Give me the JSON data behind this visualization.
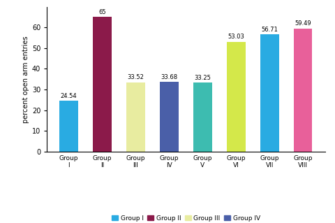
{
  "categories": [
    "Group\nI",
    "Group\nII",
    "Group\nIII",
    "Group\nIV",
    "Group\nV",
    "Group\nVI",
    "Group\nVII",
    "Group\nVIII"
  ],
  "values": [
    24.54,
    65.0,
    33.52,
    33.68,
    33.25,
    53.03,
    56.71,
    59.49
  ],
  "bar_colors": [
    "#29ABE2",
    "#8B1A4A",
    "#E8ECA0",
    "#4A5FA8",
    "#3DBCB0",
    "#D4E84A",
    "#29ABE2",
    "#E8609A"
  ],
  "value_labels": [
    "24.54",
    "65",
    "33.52",
    "33.68",
    "33.25",
    "53.03",
    "56.71",
    "59.49"
  ],
  "ylabel": "percent open arm entries",
  "ylim": [
    0,
    70
  ],
  "yticks": [
    0,
    10,
    20,
    30,
    40,
    50,
    60
  ],
  "legend_labels": [
    "Group I",
    "Group II",
    "Group III",
    "Group IV"
  ],
  "legend_colors": [
    "#29ABE2",
    "#8B1A4A",
    "#E8ECA0",
    "#4A5FA8"
  ],
  "background_color": "#ffffff"
}
